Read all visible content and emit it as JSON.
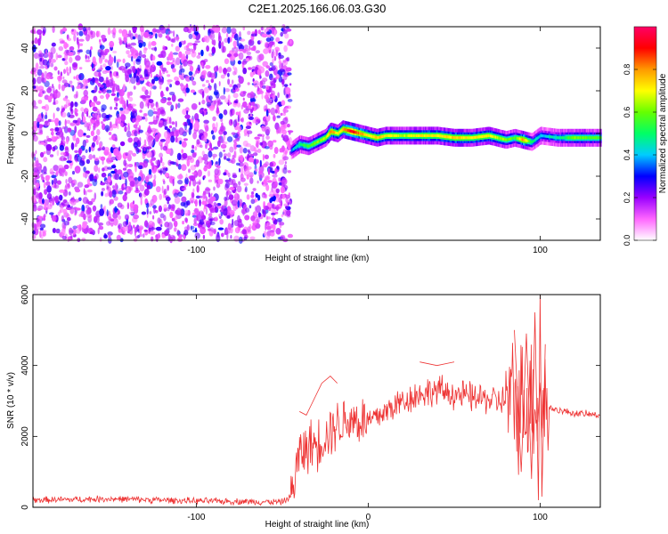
{
  "title": "C2E1.2025.166.06.03.G30",
  "chart_data": [
    {
      "type": "heatmap",
      "xlabel": "Height of straight line (km)",
      "ylabel": "Frequency (Hz)",
      "xlim": [
        -195,
        135
      ],
      "ylim": [
        -50,
        50
      ],
      "xticks": [
        -100,
        0,
        100
      ],
      "xtick_labels": [
        "-100",
        "",
        "100"
      ],
      "yticks": [
        -40,
        -20,
        0,
        20,
        40
      ],
      "ytick_labels": [
        "-40",
        "-20",
        "0",
        "20",
        "40"
      ],
      "colorbar": {
        "label": "Normalized spectral amplitude",
        "range": [
          0,
          1
        ],
        "ticks": [
          0.0,
          0.2,
          0.4,
          0.6,
          0.8
        ],
        "tick_labels": [
          "0.0",
          "0.2",
          "0.4",
          "0.6",
          "0.8"
        ],
        "colors": [
          "#ffffff",
          "#ff66ff",
          "#9900ff",
          "#0000ff",
          "#00ccff",
          "#00ff66",
          "#66ff00",
          "#ffff00",
          "#ff9900",
          "#ff0000",
          "#ff0066"
        ]
      },
      "noise_region_x": [
        -195,
        -45
      ],
      "trace": {
        "x": [
          -45,
          -40,
          -35,
          -30,
          -25,
          -22,
          -18,
          -15,
          -10,
          -5,
          0,
          5,
          10,
          20,
          30,
          40,
          50,
          60,
          70,
          75,
          80,
          85,
          90,
          95,
          100,
          110,
          120,
          135
        ],
        "y": [
          -8,
          -5,
          -6,
          -4,
          -2,
          1,
          0,
          2,
          1,
          0,
          -1,
          -2,
          -1,
          -1,
          -1,
          -1,
          -2,
          -2,
          -1,
          -2,
          -3,
          -2,
          -3,
          -4,
          -1,
          -2,
          -2,
          -2
        ],
        "amplitude": [
          0.35,
          0.5,
          0.55,
          0.6,
          0.65,
          0.8,
          0.7,
          0.75,
          0.95,
          0.8,
          0.7,
          0.75,
          0.7,
          0.65,
          0.7,
          0.7,
          0.75,
          0.7,
          0.7,
          0.65,
          0.6,
          0.55,
          0.8,
          0.5,
          0.4,
          0.45,
          0.6,
          0.55
        ]
      }
    },
    {
      "type": "line",
      "xlabel": "Height of straight line (km)",
      "ylabel": "SNR (10 * v/v)",
      "xlim": [
        -195,
        135
      ],
      "ylim": [
        0,
        6000
      ],
      "xticks": [
        -100,
        0,
        100
      ],
      "xtick_labels": [
        "-100",
        "0",
        "100"
      ],
      "yticks": [
        0,
        2000,
        4000,
        6000
      ],
      "ytick_labels": [
        "0",
        "2000",
        "4000",
        "6000"
      ],
      "color": "#ee3333",
      "envelope": {
        "x": [
          -195,
          -150,
          -100,
          -50,
          -45,
          -40,
          -35,
          -30,
          -25,
          -20,
          -10,
          0,
          10,
          20,
          30,
          40,
          50,
          60,
          70,
          75,
          80,
          85,
          90,
          95,
          100,
          105,
          110,
          120,
          135
        ],
        "y": [
          200,
          240,
          180,
          150,
          300,
          1500,
          1700,
          1800,
          2000,
          2300,
          2500,
          2400,
          2700,
          3000,
          3200,
          3300,
          3200,
          3100,
          3050,
          3000,
          3000,
          2900,
          3000,
          3100,
          3000,
          2800,
          2750,
          2650,
          2600
        ]
      },
      "highlights": [
        {
          "x": [
            -40,
            -36,
            -33,
            -27,
            -22,
            -18
          ],
          "y": [
            2700,
            2600,
            2900,
            3500,
            3700,
            3500
          ]
        },
        {
          "x": [
            30,
            40,
            50
          ],
          "y": [
            4100,
            4000,
            4100
          ]
        },
        {
          "x": [
            85,
            89,
            92,
            95,
            97,
            99,
            100,
            101,
            103
          ],
          "y": [
            5000,
            1000,
            4900,
            800,
            5500,
            200,
            6000,
            300,
            4600
          ]
        }
      ]
    }
  ]
}
